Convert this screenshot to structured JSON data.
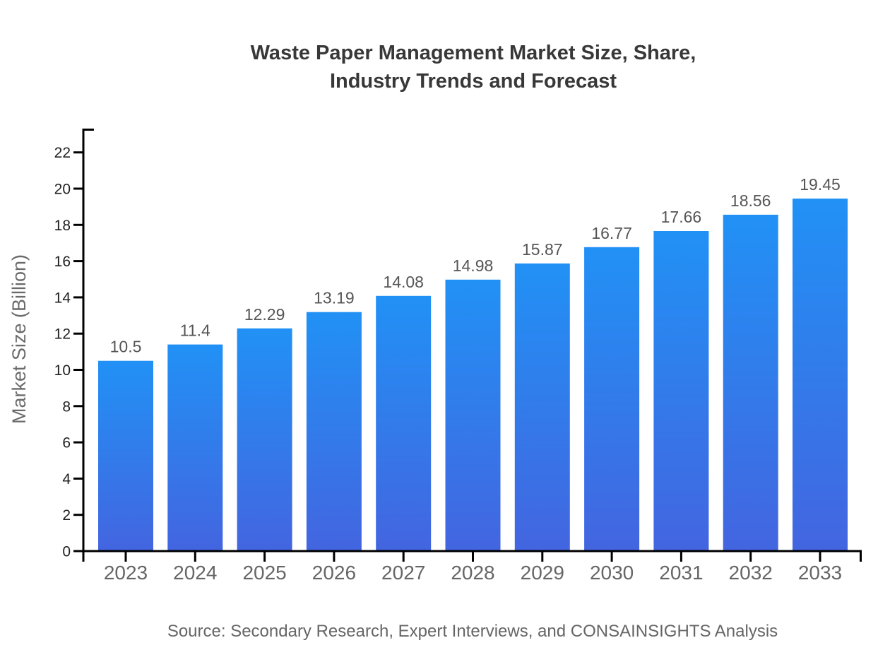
{
  "chart_data": {
    "type": "bar",
    "title": "Waste Paper Management Market Size, Share, Industry Trends and Forecast",
    "title_lines": [
      "Waste Paper Management Market Size, Share,",
      "Industry Trends and Forecast"
    ],
    "ylabel": "Market Size (Billion)",
    "xlabel": "",
    "categories": [
      "2023",
      "2024",
      "2025",
      "2026",
      "2027",
      "2028",
      "2029",
      "2030",
      "2031",
      "2032",
      "2033"
    ],
    "values": [
      10.5,
      11.4,
      12.29,
      13.19,
      14.08,
      14.98,
      15.87,
      16.77,
      17.66,
      18.56,
      19.45
    ],
    "value_labels": [
      "10.5",
      "11.4",
      "12.29",
      "13.19",
      "14.08",
      "14.98",
      "15.87",
      "16.77",
      "17.66",
      "18.56",
      "19.45"
    ],
    "yticks": [
      0,
      2,
      4,
      6,
      8,
      10,
      12,
      14,
      16,
      18,
      20,
      22
    ],
    "ylim": [
      0,
      23.3
    ],
    "grid": false,
    "legend": "none",
    "source": "Source: Secondary Research, Expert Interviews, and CONSAINSIGHTS Analysis",
    "colors": {
      "bar_gradient_top": "#2191f5",
      "bar_gradient_bottom": "#4365e0",
      "axis": "#000000",
      "ytick_label": "#1f1f1f",
      "xtick_label": "#666666",
      "value_label": "#555555",
      "title": "#383838",
      "axis_label": "#6b6b6b",
      "source": "#666666"
    },
    "background": "#ffffff"
  }
}
